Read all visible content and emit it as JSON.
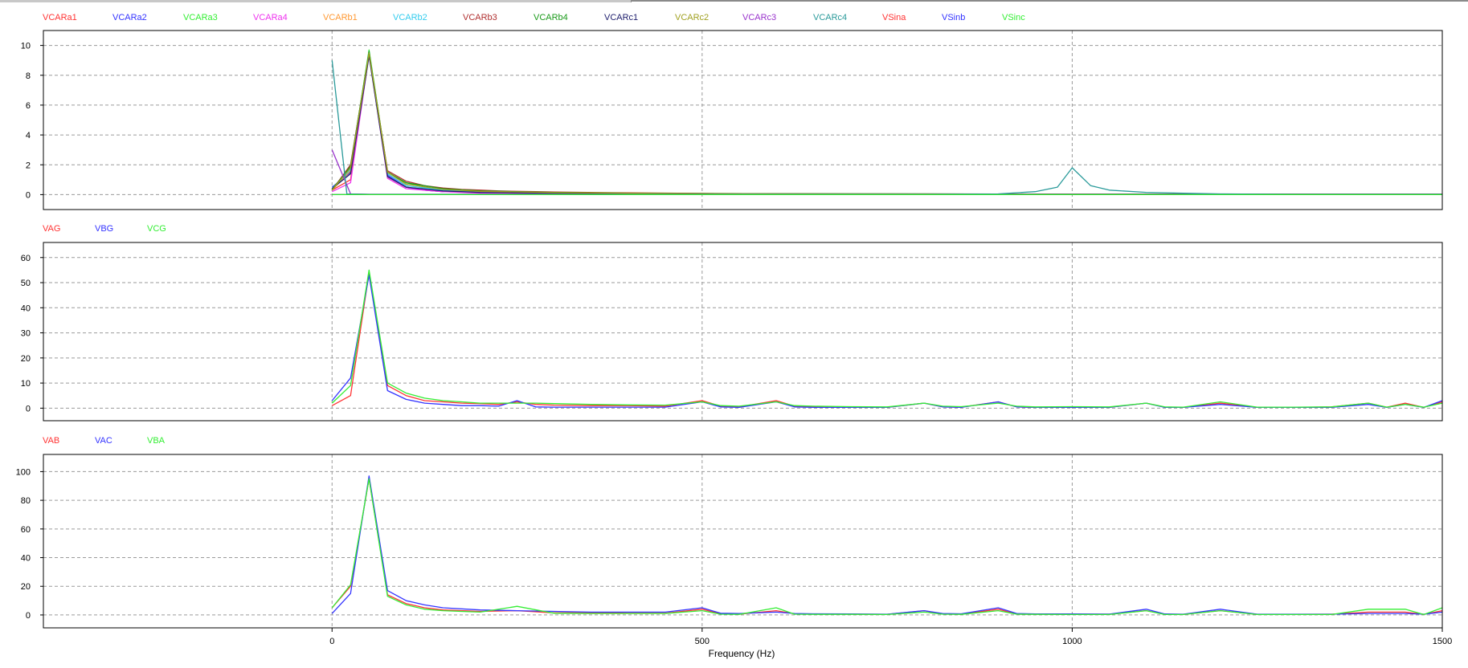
{
  "x_axis": {
    "label": "Frequency (Hz)",
    "ticks": [
      0,
      500,
      1000,
      1500
    ],
    "range": [
      -390,
      1500
    ]
  },
  "chart_data": [
    {
      "type": "line",
      "title": "",
      "xlabel": "",
      "ylabel": "",
      "xlim": [
        -390,
        1500
      ],
      "ylim": [
        -1,
        11
      ],
      "yticks": [
        0,
        2,
        4,
        6,
        8,
        10
      ],
      "grid": true,
      "legend_placement": "top-left",
      "series": [
        {
          "name": "VCARa1",
          "color": "#ff3333",
          "x": [
            0,
            25,
            50,
            75,
            100,
            125,
            150,
            200,
            250,
            300,
            350,
            400,
            500,
            600,
            700,
            800,
            900,
            1000,
            1100,
            1200,
            1300,
            1400,
            1500
          ],
          "y": [
            0.3,
            1.0,
            9.5,
            1.2,
            0.5,
            0.3,
            0.2,
            0.15,
            0.1,
            0.1,
            0.08,
            0.07,
            0.05,
            0.04,
            0.03,
            0.03,
            0.03,
            0.02,
            0.02,
            0.02,
            0.02,
            0.02,
            0.02
          ]
        },
        {
          "name": "VCARa2",
          "color": "#3333ff",
          "x": [
            0,
            25,
            50,
            75,
            100,
            125,
            150,
            200,
            250,
            300,
            350,
            400,
            500,
            600,
            700,
            800,
            900,
            1000,
            1100,
            1200,
            1300,
            1400,
            1500
          ],
          "y": [
            0.5,
            1.5,
            9.6,
            1.3,
            0.5,
            0.3,
            0.2,
            0.15,
            0.1,
            0.08,
            0.07,
            0.06,
            0.05,
            0.04,
            0.03,
            0.03,
            0.03,
            0.02,
            0.02,
            0.02,
            0.02,
            0.02,
            0.02
          ]
        },
        {
          "name": "VCARa3",
          "color": "#33ee33",
          "x": [
            0,
            25,
            50,
            75,
            100,
            125,
            150,
            200,
            250,
            300,
            350,
            400,
            500,
            600,
            700,
            800,
            900,
            1000,
            1100,
            1200,
            1300,
            1400,
            1500
          ],
          "y": [
            0.4,
            1.8,
            9.7,
            1.5,
            0.8,
            0.5,
            0.35,
            0.25,
            0.2,
            0.15,
            0.12,
            0.1,
            0.08,
            0.06,
            0.05,
            0.05,
            0.04,
            0.04,
            0.04,
            0.03,
            0.03,
            0.03,
            0.03
          ]
        },
        {
          "name": "VCARa4",
          "color": "#ee33ee",
          "x": [
            0,
            25,
            50,
            75,
            100,
            150,
            200,
            300,
            400,
            500,
            1000,
            1500
          ],
          "y": [
            0.2,
            0.8,
            9.4,
            1.1,
            0.4,
            0.2,
            0.1,
            0.08,
            0.06,
            0.05,
            0.02,
            0.02
          ]
        },
        {
          "name": "VCARb1",
          "color": "#ff9933",
          "x": [
            0,
            25,
            50,
            75,
            100,
            150,
            200,
            300,
            400,
            500,
            1000,
            1500
          ],
          "y": [
            0.3,
            1.6,
            9.5,
            1.4,
            0.6,
            0.3,
            0.2,
            0.12,
            0.08,
            0.06,
            0.03,
            0.02
          ]
        },
        {
          "name": "VCARb2",
          "color": "#33ccee",
          "x": [
            0,
            25,
            50,
            75,
            100,
            150,
            200,
            300,
            400,
            500,
            1000,
            1500
          ],
          "y": [
            0.35,
            1.7,
            9.6,
            1.4,
            0.6,
            0.3,
            0.2,
            0.12,
            0.08,
            0.06,
            0.03,
            0.02
          ]
        },
        {
          "name": "VCARb3",
          "color": "#b03030",
          "x": [
            0,
            25,
            50,
            75,
            100,
            125,
            150,
            175,
            200,
            225,
            250,
            275,
            300,
            400,
            500,
            600,
            700,
            800,
            900,
            1000,
            1500
          ],
          "y": [
            0.3,
            2.0,
            9.5,
            1.6,
            0.9,
            0.6,
            0.45,
            0.35,
            0.3,
            0.25,
            0.22,
            0.2,
            0.18,
            0.12,
            0.08,
            0.06,
            0.05,
            0.05,
            0.04,
            0.03,
            0.02
          ]
        },
        {
          "name": "VCARb4",
          "color": "#1a9a1a",
          "x": [
            0,
            25,
            50,
            75,
            100,
            150,
            200,
            300,
            400,
            500,
            1000,
            1500
          ],
          "y": [
            0.3,
            1.9,
            9.6,
            1.5,
            0.8,
            0.4,
            0.25,
            0.15,
            0.1,
            0.07,
            0.03,
            0.02
          ]
        },
        {
          "name": "VCARc1",
          "color": "#20206e",
          "x": [
            0,
            25,
            50,
            75,
            100,
            150,
            200,
            300,
            400,
            500,
            1000,
            1500
          ],
          "y": [
            0.4,
            1.4,
            9.3,
            1.2,
            0.5,
            0.25,
            0.15,
            0.1,
            0.07,
            0.05,
            0.02,
            0.02
          ]
        },
        {
          "name": "VCARc2",
          "color": "#a0a020",
          "x": [
            0,
            25,
            50,
            75,
            100,
            150,
            200,
            300,
            400,
            500,
            1000,
            1500
          ],
          "y": [
            0.3,
            1.8,
            9.5,
            1.5,
            0.7,
            0.35,
            0.22,
            0.14,
            0.09,
            0.06,
            0.03,
            0.02
          ]
        },
        {
          "name": "VCARc3",
          "color": "#9933cc",
          "x": [
            0,
            25,
            50,
            75,
            100,
            150,
            200,
            300,
            400,
            500,
            1000,
            1500
          ],
          "y": [
            3.0,
            0.05,
            0.02,
            0.02,
            0.02,
            0.02,
            0.02,
            0.02,
            0.02,
            0.02,
            0.02,
            0.02
          ]
        },
        {
          "name": "VCARc4",
          "color": "#2a9a9a",
          "x": [
            0,
            20,
            50,
            100,
            200,
            400,
            600,
            800,
            900,
            950,
            980,
            1000,
            1025,
            1050,
            1100,
            1150,
            1200,
            1300,
            1500
          ],
          "y": [
            9.0,
            0.05,
            0.02,
            0.02,
            0.02,
            0.02,
            0.02,
            0.02,
            0.05,
            0.2,
            0.5,
            1.8,
            0.6,
            0.3,
            0.15,
            0.1,
            0.05,
            0.02,
            0.02
          ]
        },
        {
          "name": "VSina",
          "color": "#ff3333",
          "x": [
            0,
            500,
            1000,
            1500
          ],
          "y": [
            0,
            0,
            0,
            0
          ]
        },
        {
          "name": "VSinb",
          "color": "#3333ff",
          "x": [
            0,
            500,
            1000,
            1500
          ],
          "y": [
            0,
            0,
            0,
            0
          ]
        },
        {
          "name": "VSinc",
          "color": "#33ee33",
          "x": [
            0,
            500,
            1000,
            1500
          ],
          "y": [
            0,
            0,
            0,
            0
          ]
        }
      ]
    },
    {
      "type": "line",
      "title": "",
      "xlabel": "",
      "ylabel": "",
      "xlim": [
        -390,
        1500
      ],
      "ylim": [
        -5,
        66
      ],
      "yticks": [
        0,
        10,
        20,
        30,
        40,
        50,
        60
      ],
      "grid": true,
      "legend_placement": "top-left",
      "series": [
        {
          "name": "VAG",
          "color": "#ff3333",
          "x": [
            0,
            25,
            50,
            75,
            100,
            125,
            150,
            175,
            200,
            225,
            250,
            275,
            300,
            350,
            400,
            450,
            500,
            525,
            550,
            600,
            625,
            650,
            700,
            750,
            800,
            825,
            850,
            900,
            925,
            950,
            1000,
            1050,
            1100,
            1125,
            1150,
            1200,
            1250,
            1300,
            1350,
            1400,
            1425,
            1450,
            1475,
            1500
          ],
          "y": [
            1,
            5,
            54,
            9,
            5,
            3,
            2.5,
            2,
            1.8,
            1.5,
            2.5,
            1.5,
            1.2,
            1,
            1,
            0.8,
            3,
            0.8,
            0.5,
            3,
            0.8,
            0.5,
            0.4,
            0.3,
            2,
            0.5,
            0.4,
            2.5,
            0.5,
            0.3,
            0.5,
            0.3,
            2,
            0.4,
            0.3,
            2,
            0.3,
            0.3,
            0.5,
            2,
            0.4,
            2,
            0.3,
            2.5
          ]
        },
        {
          "name": "VBG",
          "color": "#3333ff",
          "x": [
            0,
            25,
            50,
            75,
            100,
            125,
            150,
            175,
            200,
            225,
            250,
            275,
            300,
            350,
            400,
            450,
            500,
            525,
            550,
            600,
            625,
            650,
            700,
            750,
            800,
            825,
            850,
            900,
            925,
            950,
            1000,
            1050,
            1100,
            1125,
            1150,
            1200,
            1250,
            1300,
            1350,
            1400,
            1425,
            1450,
            1475,
            1500
          ],
          "y": [
            3,
            12,
            53,
            7,
            3.5,
            2,
            1.5,
            1,
            1,
            0.8,
            3,
            0.5,
            0.4,
            0.4,
            0.4,
            0.4,
            2.5,
            0.5,
            0.3,
            2.5,
            0.5,
            0.3,
            0.3,
            0.3,
            2,
            0.5,
            0.3,
            2.5,
            0.5,
            0.3,
            0.3,
            0.3,
            2,
            0.3,
            0.3,
            1.5,
            0.3,
            0.3,
            0.3,
            1.5,
            0.3,
            1.5,
            0.3,
            3
          ]
        },
        {
          "name": "VCG",
          "color": "#33ee33",
          "x": [
            0,
            25,
            50,
            75,
            100,
            125,
            150,
            175,
            200,
            225,
            250,
            275,
            300,
            350,
            400,
            450,
            500,
            525,
            550,
            600,
            625,
            650,
            700,
            750,
            800,
            825,
            850,
            900,
            925,
            950,
            1000,
            1050,
            1100,
            1125,
            1150,
            1200,
            1250,
            1300,
            1350,
            1400,
            1425,
            1450,
            1475,
            1500
          ],
          "y": [
            2,
            9,
            55,
            10,
            6,
            4,
            3,
            2.5,
            2,
            2,
            2,
            2,
            1.8,
            1.5,
            1.3,
            1.2,
            2.5,
            1,
            0.8,
            2.5,
            1,
            0.8,
            0.6,
            0.5,
            2,
            0.8,
            0.6,
            2,
            0.8,
            0.5,
            0.6,
            0.5,
            2,
            0.5,
            0.4,
            2.5,
            0.4,
            0.4,
            0.5,
            2,
            0.4,
            1.5,
            0.4,
            2
          ]
        }
      ]
    },
    {
      "type": "line",
      "title": "",
      "xlabel": "Frequency (Hz)",
      "ylabel": "",
      "xlim": [
        -390,
        1500
      ],
      "ylim": [
        -9,
        112
      ],
      "yticks": [
        0,
        20,
        40,
        60,
        80,
        100
      ],
      "grid": true,
      "legend_placement": "top-left",
      "series": [
        {
          "name": "VAB",
          "color": "#ff3333",
          "x": [
            0,
            25,
            50,
            75,
            100,
            125,
            150,
            200,
            250,
            300,
            350,
            400,
            450,
            500,
            525,
            550,
            600,
            625,
            650,
            700,
            750,
            800,
            825,
            850,
            900,
            925,
            950,
            1000,
            1050,
            1100,
            1125,
            1150,
            1200,
            1250,
            1300,
            1350,
            1400,
            1450,
            1475,
            1500
          ],
          "y": [
            5,
            20,
            95,
            14,
            8,
            5,
            3.5,
            2.5,
            3,
            1.5,
            1.5,
            1.2,
            1.2,
            4,
            0.8,
            0.5,
            3,
            0.8,
            0.6,
            0.5,
            0.4,
            3,
            0.6,
            0.5,
            4,
            0.6,
            0.5,
            0.5,
            0.5,
            3,
            0.5,
            0.4,
            3,
            0.4,
            0.4,
            0.5,
            2,
            2,
            0.4,
            3
          ]
        },
        {
          "name": "VAC",
          "color": "#3333ff",
          "x": [
            0,
            25,
            50,
            75,
            100,
            125,
            150,
            200,
            250,
            300,
            350,
            400,
            450,
            500,
            525,
            550,
            600,
            625,
            650,
            700,
            750,
            800,
            825,
            850,
            900,
            925,
            950,
            1000,
            1050,
            1100,
            1125,
            1150,
            1200,
            1250,
            1300,
            1350,
            1400,
            1450,
            1475,
            1500
          ],
          "y": [
            1,
            15,
            97,
            17,
            10,
            7,
            5,
            3.5,
            3,
            2.5,
            2,
            2,
            2,
            5,
            1.2,
            1,
            2,
            1,
            0.8,
            0.7,
            0.5,
            3,
            1,
            0.8,
            5,
            1,
            0.7,
            0.7,
            0.6,
            4,
            0.7,
            0.5,
            4,
            0.5,
            0.5,
            0.5,
            1,
            1,
            0.5,
            2
          ]
        },
        {
          "name": "VBA",
          "color": "#33ee33",
          "x": [
            0,
            25,
            50,
            75,
            100,
            125,
            150,
            200,
            250,
            300,
            350,
            400,
            450,
            500,
            525,
            550,
            600,
            625,
            650,
            700,
            750,
            800,
            825,
            850,
            900,
            925,
            950,
            1000,
            1050,
            1100,
            1125,
            1150,
            1200,
            1250,
            1300,
            1350,
            1400,
            1450,
            1475,
            1500
          ],
          "y": [
            5,
            21,
            95,
            13,
            7,
            4,
            3,
            2,
            6,
            1.2,
            1,
            1,
            1,
            3,
            0.5,
            0.4,
            5,
            0.5,
            0.4,
            0.4,
            0.3,
            2,
            0.5,
            0.4,
            3,
            0.5,
            0.4,
            0.3,
            0.3,
            3,
            0.3,
            0.3,
            3,
            0.3,
            0.3,
            0.3,
            4,
            4,
            0.3,
            5
          ]
        }
      ]
    }
  ]
}
